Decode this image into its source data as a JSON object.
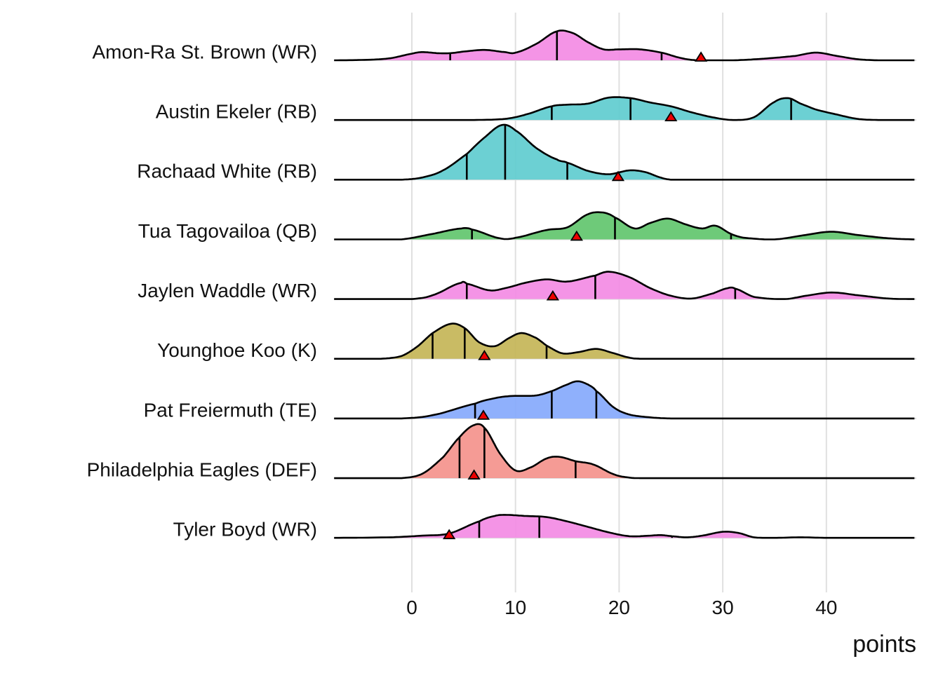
{
  "chart_data": {
    "type": "ridgeline",
    "title": "",
    "xlabel": "points",
    "ylabel": "",
    "xlim": [
      -7.5,
      48.5
    ],
    "x_ticks": [
      0,
      10,
      20,
      30,
      40
    ],
    "x_tick_labels": [
      "0",
      "10",
      "20",
      "30",
      "40"
    ],
    "grid": true,
    "legend": "none",
    "marker_description": "red triangle = projected points",
    "quantile_lines": "quartiles (25%, 50%, 75%)",
    "series": [
      {
        "name": "Amon-Ra St. Brown (WR)",
        "color": "#F38BE4",
        "projection": 27.9,
        "quantiles": [
          3.7,
          14.0,
          24.1
        ],
        "density": [
          [
            -7.5,
            0
          ],
          [
            -4,
            0.01
          ],
          [
            -2,
            0.04
          ],
          [
            0,
            0.12
          ],
          [
            1,
            0.15
          ],
          [
            2.5,
            0.13
          ],
          [
            3.7,
            0.13
          ],
          [
            5,
            0.16
          ],
          [
            7,
            0.19
          ],
          [
            9,
            0.15
          ],
          [
            10,
            0.14
          ],
          [
            12,
            0.3
          ],
          [
            14,
            0.53
          ],
          [
            15.5,
            0.5
          ],
          [
            17,
            0.33
          ],
          [
            18.5,
            0.2
          ],
          [
            20,
            0.2
          ],
          [
            22,
            0.2
          ],
          [
            24.1,
            0.14
          ],
          [
            26,
            0.04
          ],
          [
            27.5,
            0
          ],
          [
            31,
            0
          ],
          [
            34,
            0.03
          ],
          [
            37,
            0.08
          ],
          [
            39,
            0.14
          ],
          [
            41,
            0.08
          ],
          [
            43,
            0.02
          ],
          [
            45,
            0
          ],
          [
            48.5,
            0
          ]
        ]
      },
      {
        "name": "Austin Ekeler (RB)",
        "color": "#5FCCCF",
        "projection": 25,
        "quantiles": [
          13.5,
          21.1,
          36.6
        ],
        "density": [
          [
            -7.5,
            0
          ],
          [
            6,
            0
          ],
          [
            9,
            0.02
          ],
          [
            11,
            0.1
          ],
          [
            13.5,
            0.25
          ],
          [
            15,
            0.28
          ],
          [
            17,
            0.3
          ],
          [
            19,
            0.41
          ],
          [
            21.1,
            0.4
          ],
          [
            23,
            0.32
          ],
          [
            25,
            0.25
          ],
          [
            27,
            0.14
          ],
          [
            29,
            0.05
          ],
          [
            31,
            0
          ],
          [
            33,
            0.05
          ],
          [
            35,
            0.33
          ],
          [
            36.3,
            0.4
          ],
          [
            37.5,
            0.3
          ],
          [
            39,
            0.19
          ],
          [
            41,
            0.1
          ],
          [
            43,
            0.02
          ],
          [
            45,
            0
          ],
          [
            48.5,
            0
          ]
        ]
      },
      {
        "name": "Rachaad White (RB)",
        "color": "#5FCCCF",
        "projection": 19.9,
        "quantiles": [
          5.3,
          9.0,
          15.0
        ],
        "density": [
          [
            -7.5,
            0
          ],
          [
            -1,
            0
          ],
          [
            1,
            0.04
          ],
          [
            3,
            0.17
          ],
          [
            5.3,
            0.47
          ],
          [
            7,
            0.77
          ],
          [
            8.7,
            1.0
          ],
          [
            10,
            0.9
          ],
          [
            12,
            0.58
          ],
          [
            14,
            0.37
          ],
          [
            15,
            0.31
          ],
          [
            17,
            0.16
          ],
          [
            19,
            0.1
          ],
          [
            21,
            0.17
          ],
          [
            22.5,
            0.14
          ],
          [
            24,
            0.04
          ],
          [
            25,
            0
          ],
          [
            48.5,
            0
          ]
        ]
      },
      {
        "name": "Tua Tagovailoa (QB)",
        "color": "#62C66E",
        "projection": 15.9,
        "quantiles": [
          5.8,
          19.6,
          30.8
        ],
        "density": [
          [
            -7.5,
            0
          ],
          [
            -1,
            0
          ],
          [
            2,
            0.1
          ],
          [
            4.8,
            0.2
          ],
          [
            5.8,
            0.18
          ],
          [
            8.5,
            0.02
          ],
          [
            10,
            0.03
          ],
          [
            13,
            0.17
          ],
          [
            15,
            0.22
          ],
          [
            17,
            0.46
          ],
          [
            18.5,
            0.49
          ],
          [
            19.6,
            0.4
          ],
          [
            21.5,
            0.2
          ],
          [
            23,
            0.3
          ],
          [
            24.7,
            0.38
          ],
          [
            26.5,
            0.27
          ],
          [
            28,
            0.2
          ],
          [
            29.3,
            0.25
          ],
          [
            30.8,
            0.1
          ],
          [
            32,
            0.03
          ],
          [
            35,
            0
          ],
          [
            38,
            0.08
          ],
          [
            40.5,
            0.14
          ],
          [
            43,
            0.08
          ],
          [
            46,
            0.02
          ],
          [
            48.5,
            0
          ]
        ]
      },
      {
        "name": "Jaylen Waddle (WR)",
        "color": "#F38BE4",
        "projection": 13.6,
        "quantiles": [
          5.3,
          17.7,
          31.2
        ],
        "density": [
          [
            -7.5,
            0
          ],
          [
            0,
            0
          ],
          [
            2,
            0.07
          ],
          [
            4.8,
            0.3
          ],
          [
            5.3,
            0.28
          ],
          [
            7.5,
            0.16
          ],
          [
            9,
            0.2
          ],
          [
            11,
            0.3
          ],
          [
            13,
            0.36
          ],
          [
            15,
            0.32
          ],
          [
            17.7,
            0.43
          ],
          [
            19,
            0.5
          ],
          [
            21,
            0.4
          ],
          [
            23,
            0.2
          ],
          [
            25,
            0.06
          ],
          [
            27,
            0.01
          ],
          [
            29,
            0.1
          ],
          [
            30.5,
            0.2
          ],
          [
            31.2,
            0.19
          ],
          [
            33,
            0.04
          ],
          [
            36,
            0
          ],
          [
            38,
            0.06
          ],
          [
            40.5,
            0.12
          ],
          [
            43,
            0.07
          ],
          [
            46,
            0.01
          ],
          [
            48.5,
            0
          ]
        ]
      },
      {
        "name": "Younghoe Koo (K)",
        "color": "#C4B557",
        "projection": 7,
        "quantiles": [
          2.0,
          5.1,
          13.0
        ],
        "density": [
          [
            -7.5,
            0
          ],
          [
            -3,
            0
          ],
          [
            -1,
            0.05
          ],
          [
            0.5,
            0.22
          ],
          [
            2,
            0.47
          ],
          [
            3.8,
            0.64
          ],
          [
            5.1,
            0.56
          ],
          [
            6.5,
            0.3
          ],
          [
            8,
            0.23
          ],
          [
            9.5,
            0.39
          ],
          [
            10.6,
            0.47
          ],
          [
            12,
            0.38
          ],
          [
            13,
            0.24
          ],
          [
            14.5,
            0.1
          ],
          [
            16,
            0.12
          ],
          [
            17.8,
            0.18
          ],
          [
            19.5,
            0.1
          ],
          [
            21,
            0.02
          ],
          [
            22,
            0
          ],
          [
            48.5,
            0
          ]
        ]
      },
      {
        "name": "Pat Freiermuth (TE)",
        "color": "#86A9FC",
        "projection": 6.9,
        "quantiles": [
          6.1,
          13.5,
          17.8
        ],
        "density": [
          [
            -7.5,
            0
          ],
          [
            -1,
            0
          ],
          [
            2,
            0.06
          ],
          [
            6.1,
            0.27
          ],
          [
            8,
            0.37
          ],
          [
            9.5,
            0.41
          ],
          [
            12,
            0.42
          ],
          [
            13.5,
            0.5
          ],
          [
            15,
            0.62
          ],
          [
            16,
            0.68
          ],
          [
            17,
            0.62
          ],
          [
            17.8,
            0.5
          ],
          [
            19.5,
            0.2
          ],
          [
            21,
            0.07
          ],
          [
            23,
            0.02
          ],
          [
            25,
            0
          ],
          [
            48.5,
            0
          ]
        ]
      },
      {
        "name": "Philadelphia Eagles (DEF)",
        "color": "#F4928C",
        "projection": 6,
        "quantiles": [
          4.6,
          7.0,
          15.8
        ],
        "density": [
          [
            -7.5,
            0
          ],
          [
            -1,
            0
          ],
          [
            1,
            0.08
          ],
          [
            3,
            0.38
          ],
          [
            4.6,
            0.75
          ],
          [
            6,
            0.97
          ],
          [
            7,
            0.92
          ],
          [
            8.5,
            0.45
          ],
          [
            10,
            0.14
          ],
          [
            11.5,
            0.2
          ],
          [
            13,
            0.36
          ],
          [
            14.2,
            0.39
          ],
          [
            15.8,
            0.31
          ],
          [
            17.5,
            0.25
          ],
          [
            19.5,
            0.07
          ],
          [
            21,
            0.01
          ],
          [
            22,
            0
          ],
          [
            48.5,
            0
          ]
        ]
      },
      {
        "name": "Tyler Boyd (WR)",
        "color": "#F38BE4",
        "projection": 3.6,
        "quantiles": [
          6.5,
          12.3,
          25.1
        ],
        "density": [
          [
            -7.5,
            0
          ],
          [
            -2,
            0.01
          ],
          [
            1,
            0.04
          ],
          [
            3.6,
            0.08
          ],
          [
            6.5,
            0.3
          ],
          [
            8,
            0.4
          ],
          [
            9,
            0.42
          ],
          [
            11,
            0.4
          ],
          [
            13,
            0.38
          ],
          [
            15,
            0.3
          ],
          [
            17,
            0.2
          ],
          [
            19,
            0.1
          ],
          [
            21,
            0.03
          ],
          [
            23,
            0.04
          ],
          [
            24,
            0.05
          ],
          [
            25.1,
            0.03
          ],
          [
            26.5,
            0.01
          ],
          [
            28,
            0.04
          ],
          [
            30,
            0.11
          ],
          [
            31.5,
            0.09
          ],
          [
            33,
            0.01
          ],
          [
            35,
            0
          ],
          [
            37.5,
            0.01
          ],
          [
            40,
            0
          ],
          [
            48.5,
            0
          ]
        ]
      }
    ]
  }
}
